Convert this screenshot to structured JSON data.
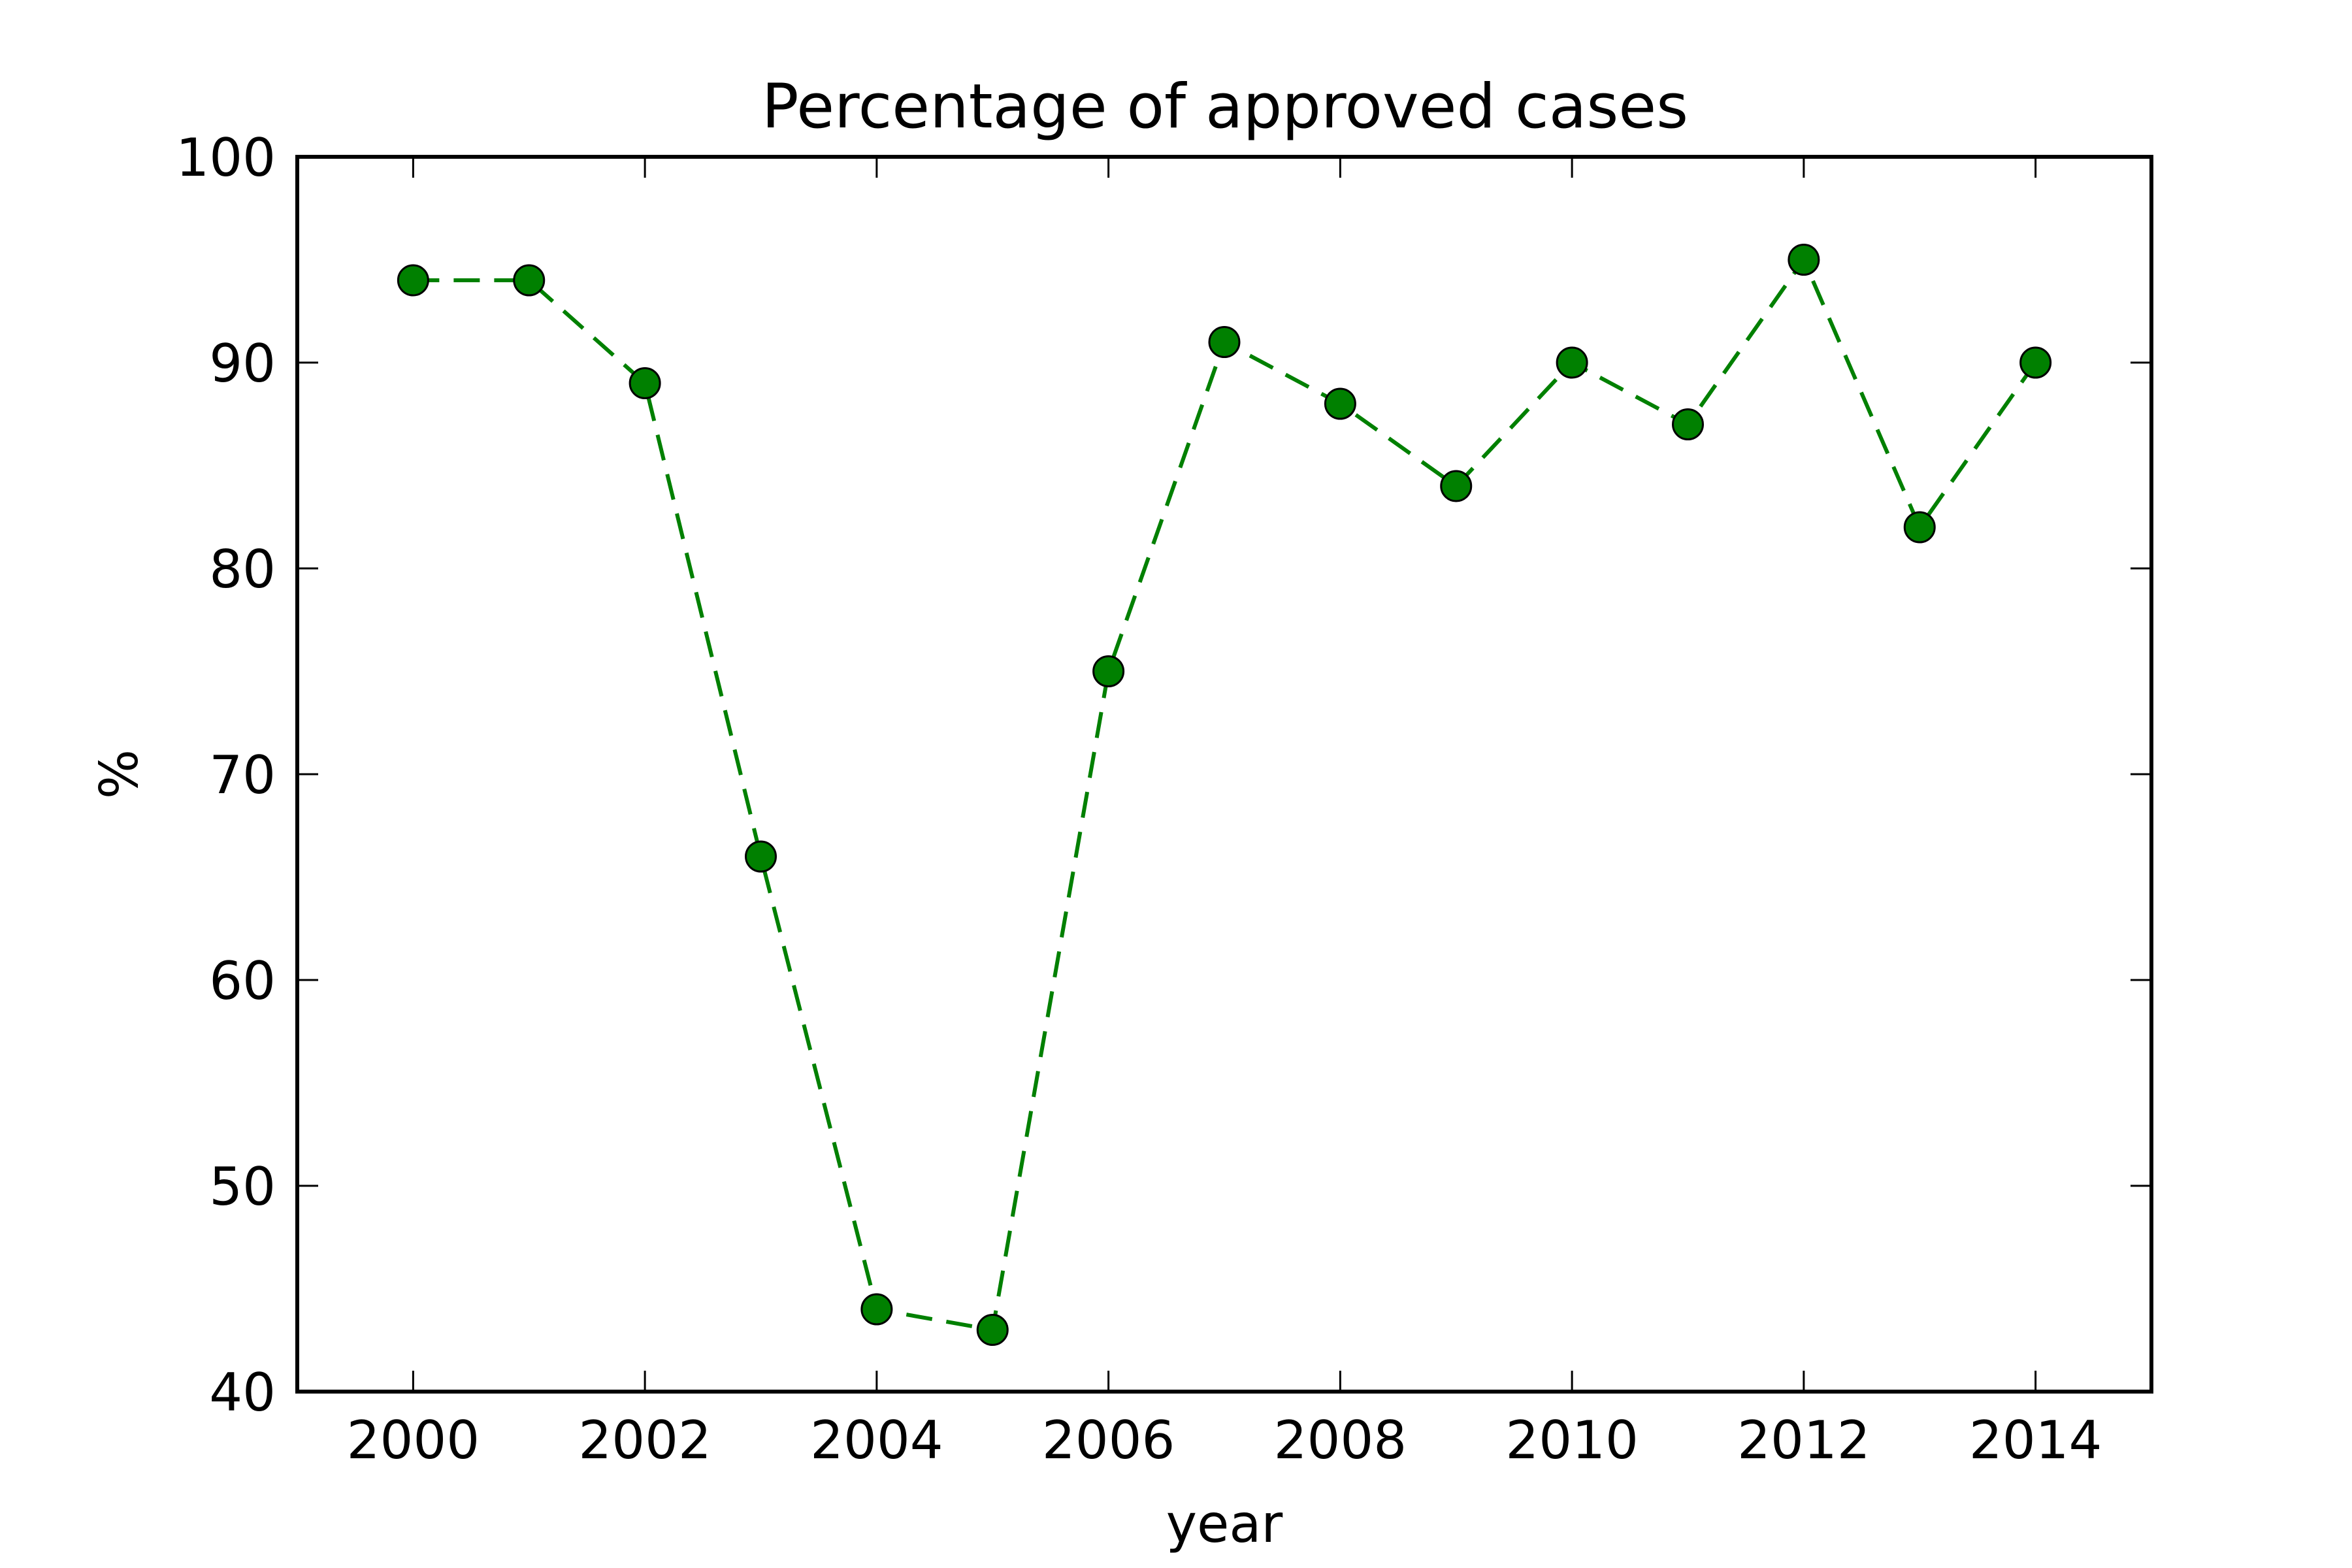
{
  "chart_data": {
    "type": "line",
    "title": "Percentage of approved cases",
    "xlabel": "year",
    "ylabel": "%",
    "xlim": [
      1999,
      2015
    ],
    "ylim": [
      40,
      100
    ],
    "xticks": [
      2000,
      2002,
      2004,
      2006,
      2008,
      2010,
      2012,
      2014
    ],
    "yticks": [
      40,
      50,
      60,
      70,
      80,
      90,
      100
    ],
    "grid": false,
    "series": [
      {
        "x": [
          2000,
          2001,
          2002,
          2003,
          2004,
          2005,
          2006,
          2007,
          2008,
          2009,
          2010,
          2011,
          2012,
          2013,
          2014
        ],
        "y": [
          94,
          94,
          89,
          66,
          44,
          43,
          75,
          91,
          88,
          84,
          90,
          87,
          95,
          82,
          90
        ],
        "line_style": "dashed",
        "marker": "circle",
        "color": "#008000"
      }
    ]
  }
}
